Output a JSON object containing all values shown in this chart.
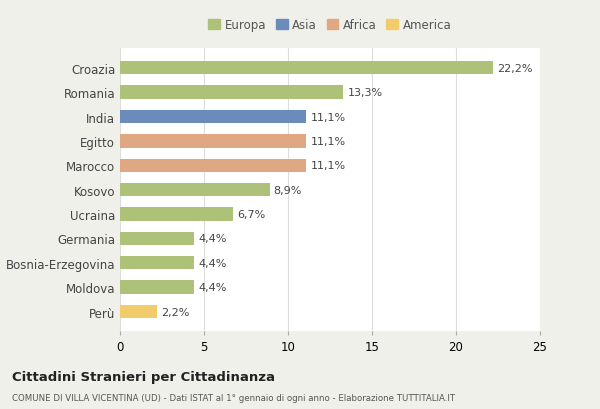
{
  "categories": [
    "Croazia",
    "Romania",
    "India",
    "Egitto",
    "Marocco",
    "Kosovo",
    "Ucraina",
    "Germania",
    "Bosnia-Erzegovina",
    "Moldova",
    "Perù"
  ],
  "values": [
    22.2,
    13.3,
    11.1,
    11.1,
    11.1,
    8.9,
    6.7,
    4.4,
    4.4,
    4.4,
    2.2
  ],
  "labels": [
    "22,2%",
    "13,3%",
    "11,1%",
    "11,1%",
    "11,1%",
    "8,9%",
    "6,7%",
    "4,4%",
    "4,4%",
    "4,4%",
    "2,2%"
  ],
  "colors": [
    "#adc178",
    "#adc178",
    "#6b8cba",
    "#e0a882",
    "#e0a882",
    "#adc178",
    "#adc178",
    "#adc178",
    "#adc178",
    "#adc178",
    "#f0cc6a"
  ],
  "legend_labels": [
    "Europa",
    "Asia",
    "Africa",
    "America"
  ],
  "legend_colors": [
    "#adc178",
    "#6b8cba",
    "#e0a882",
    "#f0cc6a"
  ],
  "title": "Cittadini Stranieri per Cittadinanza",
  "subtitle": "COMUNE DI VILLA VICENTINA (UD) - Dati ISTAT al 1° gennaio di ogni anno - Elaborazione TUTTITALIA.IT",
  "xlim": [
    0,
    25
  ],
  "xticks": [
    0,
    5,
    10,
    15,
    20,
    25
  ],
  "background_color": "#f0f0eb",
  "bar_background": "#ffffff"
}
